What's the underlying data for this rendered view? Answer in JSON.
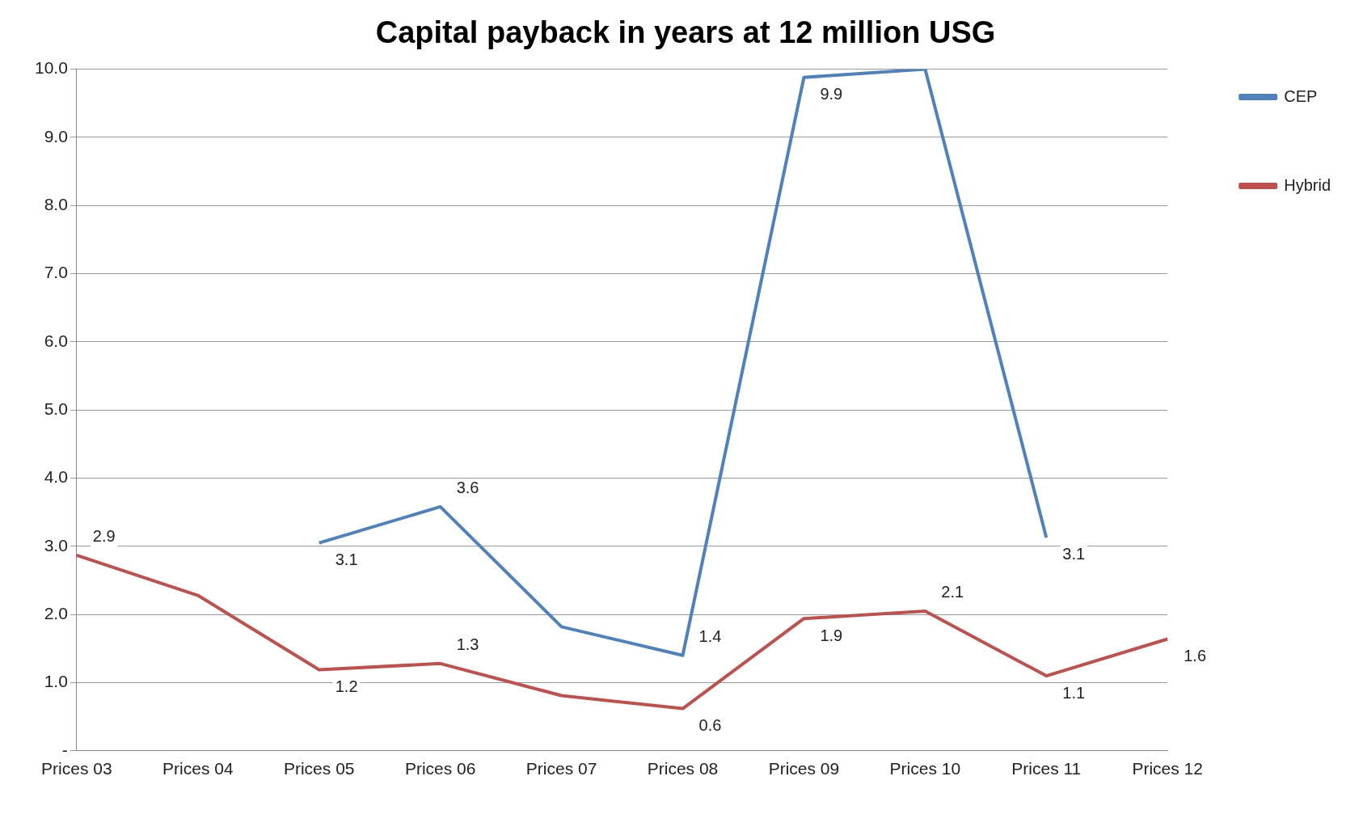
{
  "chart_data": {
    "type": "line",
    "title": "Capital payback in years at 12 million USG",
    "categories": [
      "Prices 03",
      "Prices 04",
      "Prices 05",
      "Prices 06",
      "Prices 07",
      "Prices 08",
      "Prices 09",
      "Prices 10",
      "Prices 11",
      "Prices 12"
    ],
    "series": [
      {
        "name": "CEP",
        "color": "#4f81bd",
        "values": [
          null,
          null,
          3.05,
          3.58,
          1.82,
          1.4,
          9.88,
          10.0,
          3.13,
          null
        ],
        "value_labels": [
          null,
          null,
          "3.1",
          "3.6",
          null,
          "1.4",
          "9.9",
          null,
          "3.1",
          null
        ]
      },
      {
        "name": "Hybrid",
        "color": "#c0504d",
        "values": [
          2.87,
          2.28,
          1.19,
          1.28,
          0.81,
          0.62,
          1.94,
          2.05,
          1.1,
          1.64
        ],
        "value_labels": [
          "2.9",
          null,
          "1.2",
          "1.3",
          null,
          "0.6",
          "1.9",
          "2.1",
          "1.1",
          "1.6"
        ]
      }
    ],
    "ylim": [
      0,
      10
    ],
    "yticks": [
      {
        "value": 0,
        "label": "-"
      },
      {
        "value": 1,
        "label": "1.0"
      },
      {
        "value": 2,
        "label": "2.0"
      },
      {
        "value": 3,
        "label": "3.0"
      },
      {
        "value": 4,
        "label": "4.0"
      },
      {
        "value": 5,
        "label": "5.0"
      },
      {
        "value": 6,
        "label": "6.0"
      },
      {
        "value": 7,
        "label": "7.0"
      },
      {
        "value": 8,
        "label": "8.0"
      },
      {
        "value": 9,
        "label": "9.0"
      },
      {
        "value": 10,
        "label": "10.0"
      }
    ],
    "grid": "y",
    "legend": "top right",
    "marker": "none",
    "line_style": "solid"
  }
}
